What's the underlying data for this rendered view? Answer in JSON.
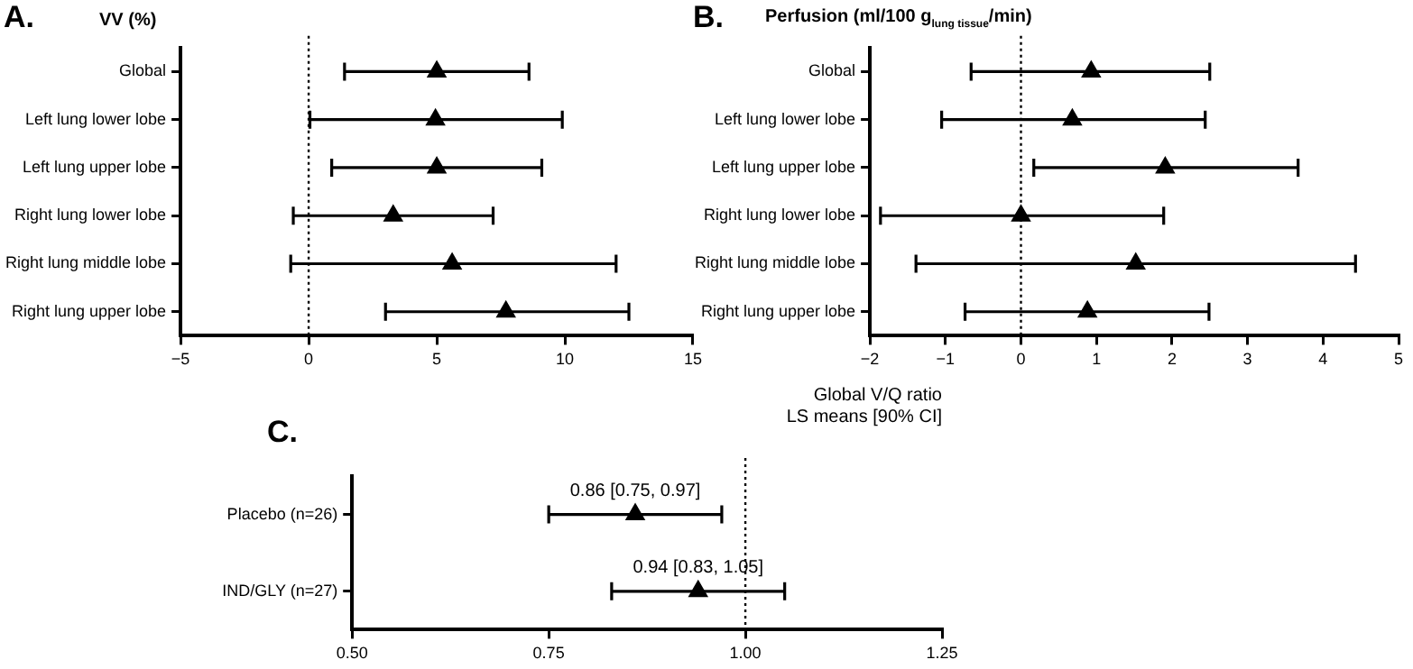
{
  "chart_data": [
    {
      "type": "scatter",
      "title": "A.",
      "subtitle": "VV (%)",
      "orientation": "horizontal",
      "marker": "triangle",
      "color": "#000000",
      "categories": [
        "Global",
        "Left lung lower lobe",
        "Left lung upper lobe",
        "Right lung lower lobe",
        "Right lung middle lobe",
        "Right lung upper lobe"
      ],
      "values": [
        5.0,
        4.95,
        5.0,
        3.3,
        5.6,
        7.7
      ],
      "errors": [
        [
          1.4,
          8.6
        ],
        [
          0.05,
          9.9
        ],
        [
          0.9,
          9.1
        ],
        [
          -0.6,
          7.2
        ],
        [
          -0.7,
          12.0
        ],
        [
          3.0,
          12.5
        ]
      ],
      "xlim": [
        -5,
        15
      ],
      "xticks": [
        -5,
        0,
        5,
        10,
        15
      ],
      "ref_lines": [
        {
          "axis": "x",
          "value": 0,
          "line_style": "dotted"
        }
      ]
    },
    {
      "type": "scatter",
      "title": "B.",
      "subtitle": "Perfusion (ml/100 g$_{lung tissue}$/min)",
      "orientation": "horizontal",
      "marker": "triangle",
      "color": "#000000",
      "categories": [
        "Global",
        "Left lung lower lobe",
        "Left lung upper lobe",
        "Right lung lower lobe",
        "Right lung middle lobe",
        "Right lung upper lobe"
      ],
      "values": [
        0.93,
        0.68,
        1.91,
        0.0,
        1.52,
        0.88
      ],
      "errors": [
        [
          -0.66,
          2.5
        ],
        [
          -1.05,
          2.44
        ],
        [
          0.17,
          3.67
        ],
        [
          -1.86,
          1.89
        ],
        [
          -1.39,
          4.43
        ],
        [
          -0.74,
          2.49
        ]
      ],
      "xlim": [
        -2,
        5
      ],
      "xticks": [
        -2,
        -1,
        0,
        1,
        2,
        3,
        4,
        5
      ],
      "ref_lines": [
        {
          "axis": "x",
          "value": 0,
          "line_style": "dotted"
        }
      ]
    },
    {
      "type": "scatter",
      "title": "C.",
      "orientation": "horizontal",
      "marker": "triangle",
      "color": "#000000",
      "categories": [
        "Placebo (n=26)",
        "IND/GLY (n=27)"
      ],
      "values": [
        0.86,
        0.94
      ],
      "errors": [
        [
          0.75,
          0.97
        ],
        [
          0.83,
          1.05
        ]
      ],
      "value_labels": [
        "0.86 [0.75, 0.97]",
        "0.94 [0.83, 1.05]"
      ],
      "annotations": [
        "Global V/Q ratio",
        "LS means [90% CI]"
      ],
      "xlim": [
        0.5,
        1.25
      ],
      "xticks": [
        {
          "value": 0.5,
          "label": "0.50"
        },
        {
          "value": 0.75,
          "label": "0.75"
        },
        {
          "value": 1.0,
          "label": "1.00"
        },
        {
          "value": 1.25,
          "label": "1.25"
        }
      ],
      "ref_lines": [
        {
          "axis": "x",
          "value": 1.0,
          "line_style": "dotted"
        }
      ]
    }
  ]
}
